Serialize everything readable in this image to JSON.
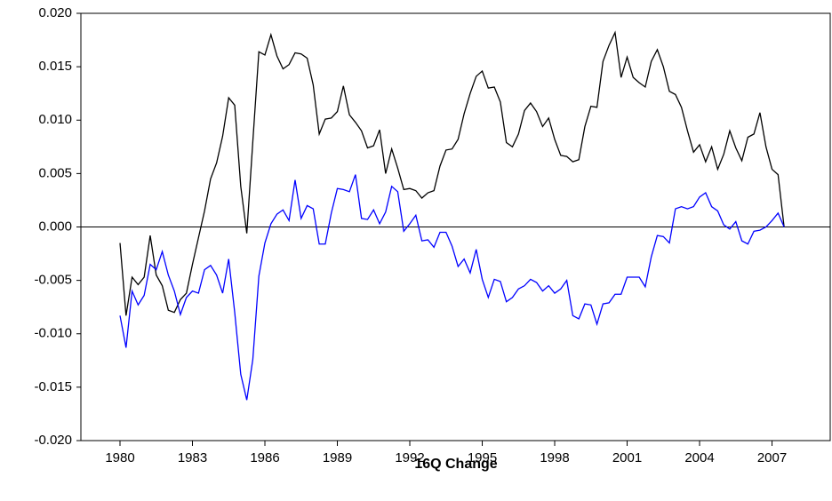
{
  "chart_data": {
    "type": "line",
    "x_label": "16Q Change",
    "x": [
      1980,
      1980.25,
      1980.5,
      1980.75,
      1981,
      1981.25,
      1981.5,
      1981.75,
      1982,
      1982.25,
      1982.5,
      1982.75,
      1983,
      1983.25,
      1983.5,
      1983.75,
      1984,
      1984.25,
      1984.5,
      1984.75,
      1985,
      1985.25,
      1985.5,
      1985.75,
      1986,
      1986.25,
      1986.5,
      1986.75,
      1987,
      1987.25,
      1987.5,
      1987.75,
      1988,
      1988.25,
      1988.5,
      1988.75,
      1989,
      1989.25,
      1989.5,
      1989.75,
      1990,
      1990.25,
      1990.5,
      1990.75,
      1991,
      1991.25,
      1991.5,
      1991.75,
      1992,
      1992.25,
      1992.5,
      1992.75,
      1993,
      1993.25,
      1993.5,
      1993.75,
      1994,
      1994.25,
      1994.5,
      1994.75,
      1995,
      1995.25,
      1995.5,
      1995.75,
      1996,
      1996.25,
      1996.5,
      1996.75,
      1997,
      1997.25,
      1997.5,
      1997.75,
      1998,
      1998.25,
      1998.5,
      1998.75,
      1999,
      1999.25,
      1999.5,
      1999.75,
      2000,
      2000.25,
      2000.5,
      2000.75,
      2001,
      2001.25,
      2001.5,
      2001.75,
      2002,
      2002.25,
      2002.5,
      2002.75,
      2003,
      2003.25,
      2003.5,
      2003.75,
      2004,
      2004.25,
      2004.5,
      2004.75,
      2005,
      2005.25,
      2005.5,
      2005.75,
      2006,
      2006.25,
      2006.5,
      2006.75,
      2007,
      2007.25,
      2007.5
    ],
    "series": [
      {
        "color": "#000000",
        "values": [
          -0.0015,
          -0.0083,
          -0.0047,
          -0.0054,
          -0.0047,
          -0.0008,
          -0.0045,
          -0.0055,
          -0.0078,
          -0.008,
          -0.0068,
          -0.0062,
          -0.0035,
          -0.001,
          0.0015,
          0.0045,
          0.006,
          0.0085,
          0.0121,
          0.0114,
          0.0038,
          -0.0006,
          0.008,
          0.0164,
          0.0161,
          0.018,
          0.016,
          0.0148,
          0.0152,
          0.0163,
          0.0162,
          0.0158,
          0.0133,
          0.0087,
          0.0101,
          0.0102,
          0.0108,
          0.0132,
          0.0105,
          0.0098,
          0.009,
          0.0074,
          0.0076,
          0.0091,
          0.005,
          0.0073,
          0.0055,
          0.0035,
          0.0036,
          0.0034,
          0.0027,
          0.0032,
          0.0034,
          0.0057,
          0.0072,
          0.0073,
          0.0082,
          0.0106,
          0.0125,
          0.0141,
          0.0146,
          0.013,
          0.0131,
          0.0117,
          0.0079,
          0.0075,
          0.0087,
          0.0109,
          0.0116,
          0.0108,
          0.0094,
          0.0102,
          0.0082,
          0.0067,
          0.0066,
          0.0061,
          0.0063,
          0.0094,
          0.0113,
          0.0112,
          0.0155,
          0.017,
          0.0182,
          0.014,
          0.0159,
          0.014,
          0.0135,
          0.0131,
          0.0155,
          0.0166,
          0.015,
          0.0127,
          0.0124,
          0.0112,
          0.009,
          0.007,
          0.0077,
          0.0061,
          0.0075,
          0.0054,
          0.0068,
          0.009,
          0.0074,
          0.0062,
          0.0084,
          0.0087,
          0.0107,
          0.0075,
          0.0054,
          0.0049,
          0.0
        ]
      },
      {
        "color": "#0000ff",
        "values": [
          -0.0083,
          -0.0113,
          -0.006,
          -0.0073,
          -0.0064,
          -0.0035,
          -0.004,
          -0.0023,
          -0.0045,
          -0.006,
          -0.0082,
          -0.0066,
          -0.006,
          -0.0062,
          -0.004,
          -0.0036,
          -0.0045,
          -0.0062,
          -0.003,
          -0.008,
          -0.0138,
          -0.0162,
          -0.0124,
          -0.0046,
          -0.0015,
          0.0003,
          0.0012,
          0.0016,
          0.0006,
          0.0044,
          0.0008,
          0.002,
          0.0017,
          -0.0016,
          -0.0016,
          0.0013,
          0.0036,
          0.0035,
          0.0033,
          0.0049,
          0.0008,
          0.0007,
          0.0016,
          0.0003,
          0.0014,
          0.0038,
          0.0033,
          -0.0004,
          0.0003,
          0.0011,
          -0.0013,
          -0.0012,
          -0.0019,
          -0.0005,
          -0.0005,
          -0.0018,
          -0.0037,
          -0.003,
          -0.0043,
          -0.0021,
          -0.0049,
          -0.0066,
          -0.0049,
          -0.0051,
          -0.007,
          -0.0066,
          -0.0058,
          -0.0055,
          -0.0049,
          -0.0052,
          -0.006,
          -0.0055,
          -0.0062,
          -0.0058,
          -0.005,
          -0.0083,
          -0.0086,
          -0.0072,
          -0.0073,
          -0.0091,
          -0.0072,
          -0.0071,
          -0.0063,
          -0.0063,
          -0.0047,
          -0.0047,
          -0.0047,
          -0.0056,
          -0.0028,
          -0.0008,
          -0.0009,
          -0.0015,
          0.0017,
          0.0019,
          0.0017,
          0.0019,
          0.0028,
          0.0032,
          0.0019,
          0.0015,
          0.0002,
          -0.0002,
          0.0005,
          -0.0013,
          -0.0016,
          -0.0004,
          -0.0003,
          0.0,
          0.0006,
          0.0013,
          0.0
        ]
      }
    ],
    "xlim": [
      1978.38,
      2009.41
    ],
    "xticks": [
      1980,
      1983,
      1986,
      1989,
      1992,
      1995,
      1998,
      2001,
      2004,
      2007
    ],
    "ylim": [
      -0.02,
      0.02
    ],
    "yticks": [
      {
        "value": -0.02,
        "label": "-0.020"
      },
      {
        "value": -0.015,
        "label": "-0.015"
      },
      {
        "value": -0.01,
        "label": "-0.010"
      },
      {
        "value": -0.005,
        "label": "-0.005"
      },
      {
        "value": 0,
        "label": "0.000"
      },
      {
        "value": 0.005,
        "label": "0.005"
      },
      {
        "value": 0.01,
        "label": "0.010"
      },
      {
        "value": 0.015,
        "label": "0.015"
      },
      {
        "value": 0.02,
        "label": "0.020"
      }
    ],
    "zero_line": true,
    "grid": false
  }
}
